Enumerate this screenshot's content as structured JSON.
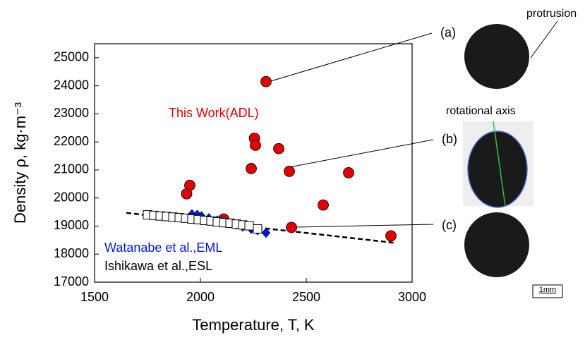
{
  "chart_data": {
    "type": "scatter",
    "x_label": "Temperature, T, K",
    "y_label": "Density ρ, kg·m⁻³",
    "xlim": [
      1500,
      3000
    ],
    "xticks": [
      1500,
      2000,
      2500,
      3000
    ],
    "ylim": [
      17000,
      25500
    ],
    "yticks": [
      17000,
      18000,
      19000,
      20000,
      21000,
      22000,
      23000,
      24000,
      25000
    ],
    "series": [
      {
        "name": "This Work(ADL)",
        "color": "#e00000",
        "marker": "circle",
        "x": [
          2310,
          2255,
          2260,
          2370,
          2240,
          2420,
          2700,
          1950,
          1935,
          2580,
          2110,
          2430,
          2900
        ],
        "values": [
          24150,
          22130,
          21880,
          21760,
          21050,
          20950,
          20900,
          20450,
          20150,
          19750,
          19250,
          18950,
          18650
        ]
      },
      {
        "name": "Watanabe et al.,EML",
        "color": "#0018d0",
        "marker": "diamond",
        "x": [
          1960,
          1985,
          2005,
          2040,
          2080,
          2110,
          2140,
          2170,
          2200,
          2240,
          2270,
          2310
        ],
        "values": [
          19420,
          19400,
          19350,
          19280,
          19200,
          19150,
          19100,
          19050,
          18980,
          18900,
          18850,
          18760
        ]
      },
      {
        "name": "Ishikawa et al.,ESL",
        "color": "#000000",
        "marker": "square",
        "x": [
          1750,
          1780,
          1810,
          1840,
          1870,
          1900,
          1930,
          1960,
          1990,
          2020,
          2050,
          2080,
          2110,
          2140,
          2170,
          2200,
          2230,
          2270
        ],
        "values": [
          19400,
          19380,
          19360,
          19340,
          19320,
          19300,
          19280,
          19250,
          19230,
          19200,
          19180,
          19150,
          19120,
          19100,
          19070,
          19040,
          19010,
          18900
        ]
      }
    ],
    "fit_line": {
      "x": [
        1650,
        2920
      ],
      "values": [
        19470,
        18400
      ]
    }
  },
  "images": {
    "labels": [
      "(a)",
      "(b)",
      "(c)"
    ],
    "protrusion": "protrusion",
    "rotational_axis": "rotational axis",
    "scale_bar": "1mm"
  }
}
